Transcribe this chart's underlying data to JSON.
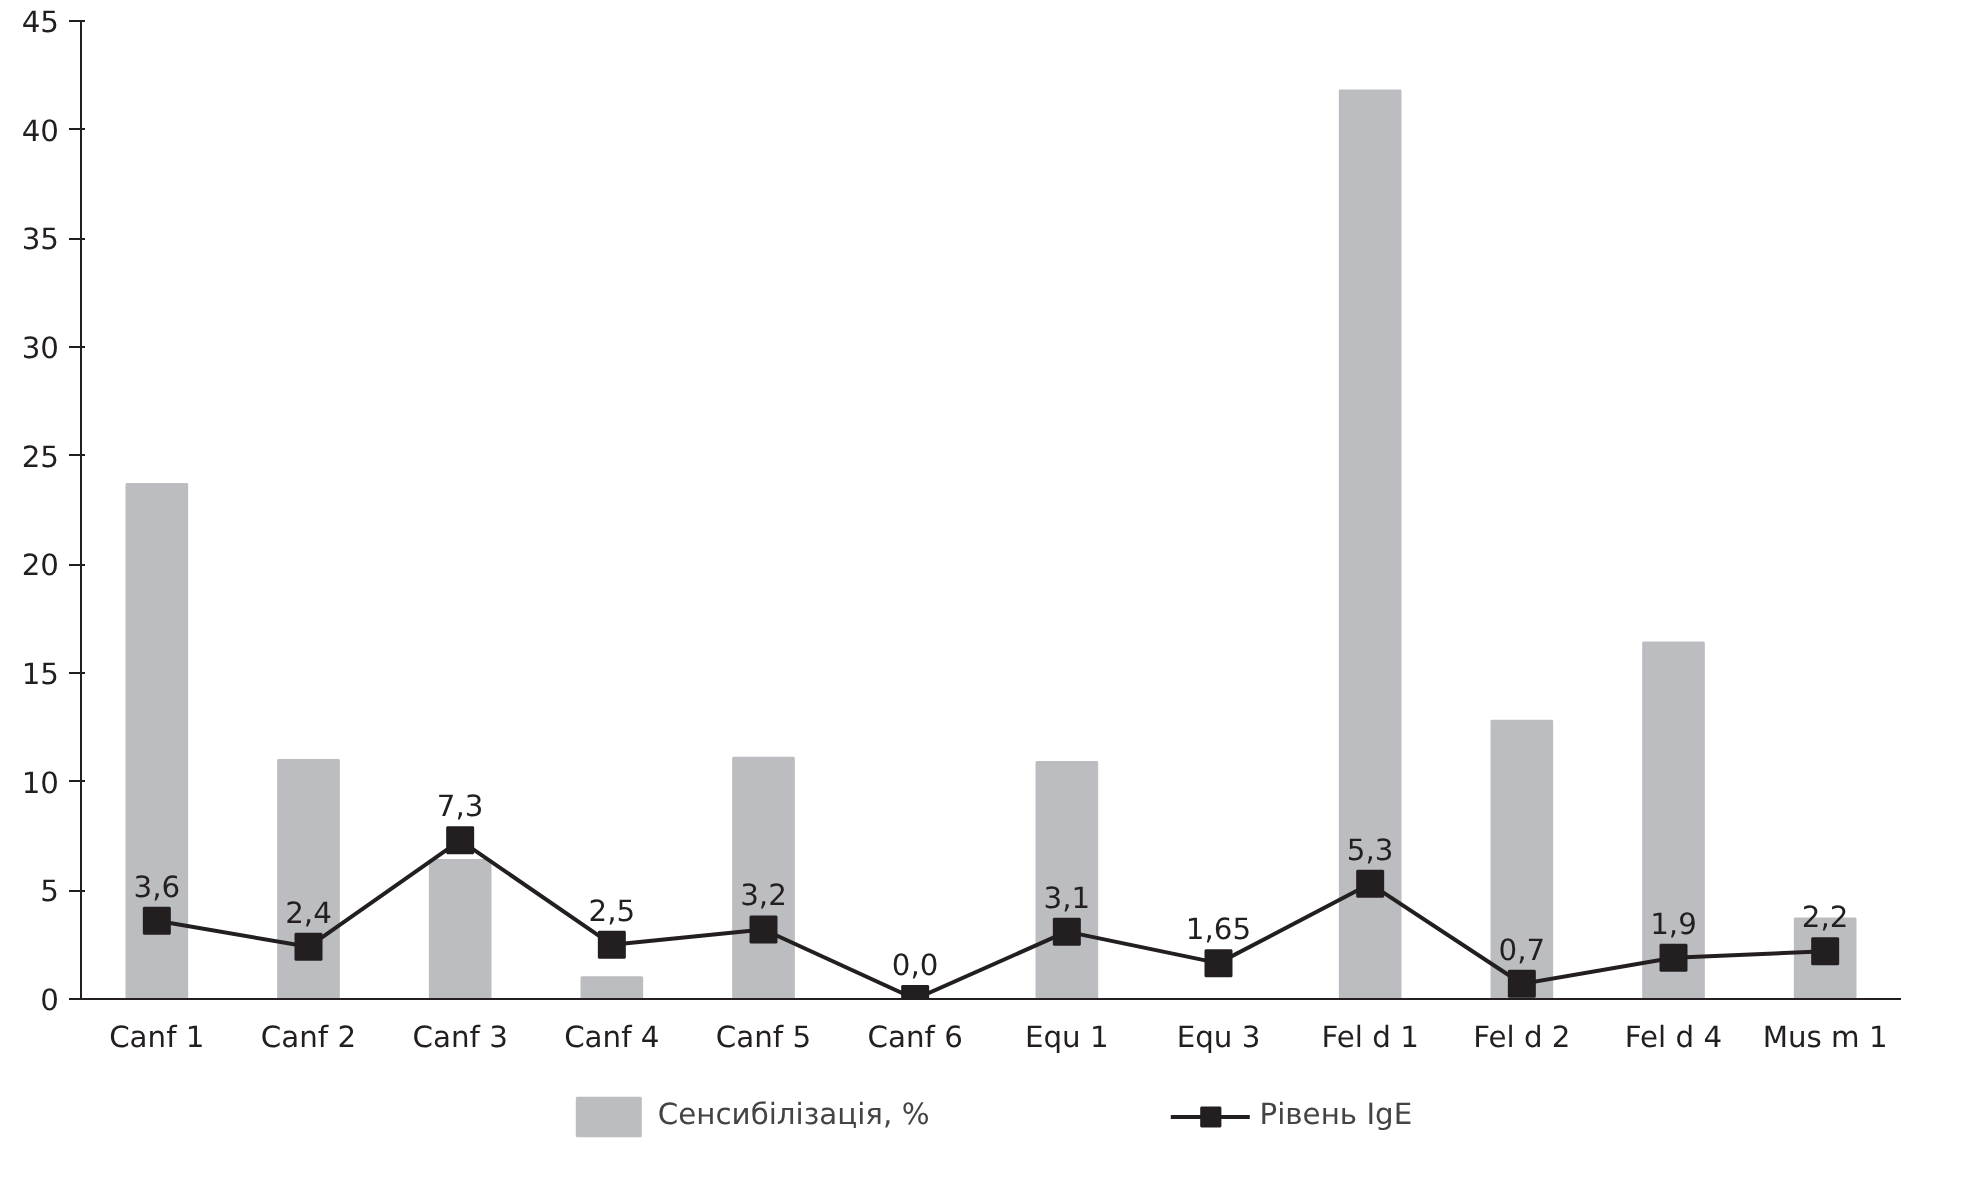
{
  "chart_data": {
    "type": "bar",
    "categories": [
      "Canf 1",
      "Canf 2",
      "Canf 3",
      "Canf 4",
      "Canf 5",
      "Canf 6",
      "Equ 1",
      "Equ 3",
      "Fel d 1",
      "Fel d 2",
      "Fel d 4",
      "Mus m 1"
    ],
    "series": [
      {
        "name": "Сенсибілізація, %",
        "color": "#bcbdc0",
        "values": [
          23.7,
          11.0,
          6.4,
          1.0,
          11.1,
          0,
          10.9,
          0,
          41.8,
          12.8,
          16.4,
          3.7
        ]
      },
      {
        "name": "Рівень IgE",
        "type": "line",
        "color": "#231f20",
        "marker": "square",
        "values": [
          3.6,
          2.4,
          7.3,
          2.5,
          3.2,
          0.0,
          3.1,
          1.65,
          5.3,
          0.7,
          1.9,
          2.2
        ],
        "value_labels": [
          "3,6",
          "2,4",
          "7,3",
          "2,5",
          "3,2",
          "0,0",
          "3,1",
          "1,65",
          "5,3",
          "0,7",
          "1,9",
          "2,2"
        ]
      }
    ],
    "ylim": [
      0,
      45
    ],
    "yticks": [
      0,
      5,
      10,
      15,
      20,
      25,
      30,
      35,
      40,
      45
    ],
    "grid": false,
    "legend": "bottom"
  }
}
